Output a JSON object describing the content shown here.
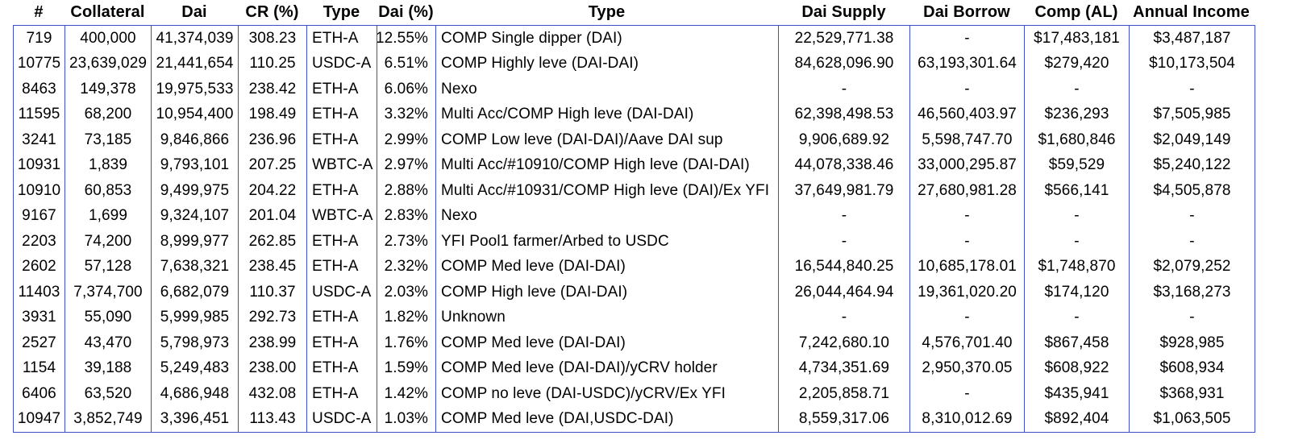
{
  "colors": {
    "border": "#3e50c6",
    "text": "#000000",
    "background": "#ffffff"
  },
  "table": {
    "columns": [
      "#",
      "Collateral",
      "Dai",
      "CR (%)",
      "Type",
      "Dai (%)",
      "Type",
      "Dai Supply",
      "Dai Borrow",
      "Comp (AL)",
      "Annual Income"
    ],
    "rows": [
      [
        "719",
        "400,000",
        "41,374,039",
        "308.23",
        "ETH-A",
        "12.55%",
        "COMP Single dipper (DAI)",
        "22,529,771.38",
        "-",
        "$17,483,181",
        "$3,487,187"
      ],
      [
        "10775",
        "23,639,029",
        "21,441,654",
        "110.25",
        "USDC-A",
        "6.51%",
        "COMP Highly leve (DAI-DAI)",
        "84,628,096.90",
        "63,193,301.64",
        "$279,420",
        "$10,173,504"
      ],
      [
        "8463",
        "149,378",
        "19,975,533",
        "238.42",
        "ETH-A",
        "6.06%",
        "Nexo",
        "-",
        "-",
        "-",
        "-"
      ],
      [
        "11595",
        "68,200",
        "10,954,400",
        "198.49",
        "ETH-A",
        "3.32%",
        "Multi Acc/COMP High leve (DAI-DAI)",
        "62,398,498.53",
        "46,560,403.97",
        "$236,293",
        "$7,505,985"
      ],
      [
        "3241",
        "73,185",
        "9,846,866",
        "236.96",
        "ETH-A",
        "2.99%",
        "COMP Low leve (DAI-DAI)/Aave DAI sup",
        "9,906,689.92",
        "5,598,747.70",
        "$1,680,846",
        "$2,049,149"
      ],
      [
        "10931",
        "1,839",
        "9,793,101",
        "207.25",
        "WBTC-A",
        "2.97%",
        "Multi Acc/#10910/COMP High leve (DAI-DAI)",
        "44,078,338.46",
        "33,000,295.87",
        "$59,529",
        "$5,240,122"
      ],
      [
        "10910",
        "60,853",
        "9,499,975",
        "204.22",
        "ETH-A",
        "2.88%",
        "Multi Acc/#10931/COMP High leve (DAI)/Ex YFI",
        "37,649,981.79",
        "27,680,981.28",
        "$566,141",
        "$4,505,878"
      ],
      [
        "9167",
        "1,699",
        "9,324,107",
        "201.04",
        "WBTC-A",
        "2.83%",
        "Nexo",
        "-",
        "-",
        "-",
        "-"
      ],
      [
        "2203",
        "74,200",
        "8,999,977",
        "262.85",
        "ETH-A",
        "2.73%",
        "YFI Pool1 farmer/Arbed to USDC",
        "-",
        "-",
        "-",
        "-"
      ],
      [
        "2602",
        "57,128",
        "7,638,321",
        "238.45",
        "ETH-A",
        "2.32%",
        "COMP Med leve (DAI-DAI)",
        "16,544,840.25",
        "10,685,178.01",
        "$1,748,870",
        "$2,079,252"
      ],
      [
        "11403",
        "7,374,700",
        "6,682,079",
        "110.37",
        "USDC-A",
        "2.03%",
        "COMP High leve (DAI-DAI)",
        "26,044,464.94",
        "19,361,020.20",
        "$174,120",
        "$3,168,273"
      ],
      [
        "3931",
        "55,090",
        "5,999,985",
        "292.73",
        "ETH-A",
        "1.82%",
        "Unknown",
        "-",
        "-",
        "-",
        "-"
      ],
      [
        "2527",
        "43,470",
        "5,798,973",
        "238.99",
        "ETH-A",
        "1.76%",
        "COMP Med leve (DAI-DAI)",
        "7,242,680.10",
        "4,576,701.40",
        "$867,458",
        "$928,985"
      ],
      [
        "1154",
        "39,188",
        "5,249,483",
        "238.00",
        "ETH-A",
        "1.59%",
        "COMP Med leve (DAI-DAI)/yCRV holder",
        "4,734,351.69",
        "2,950,370.05",
        "$608,922",
        "$608,934"
      ],
      [
        "6406",
        "63,520",
        "4,686,948",
        "432.08",
        "ETH-A",
        "1.42%",
        "COMP no leve (DAI-USDC)/yCRV/Ex YFI",
        "2,205,858.71",
        "-",
        "$435,941",
        "$368,931"
      ],
      [
        "10947",
        "3,852,749",
        "3,396,451",
        "113.43",
        "USDC-A",
        "1.03%",
        "COMP Med leve (DAI,USDC-DAI)",
        "8,559,317.06",
        "8,310,012.69",
        "$892,404",
        "$1,063,505"
      ]
    ]
  }
}
